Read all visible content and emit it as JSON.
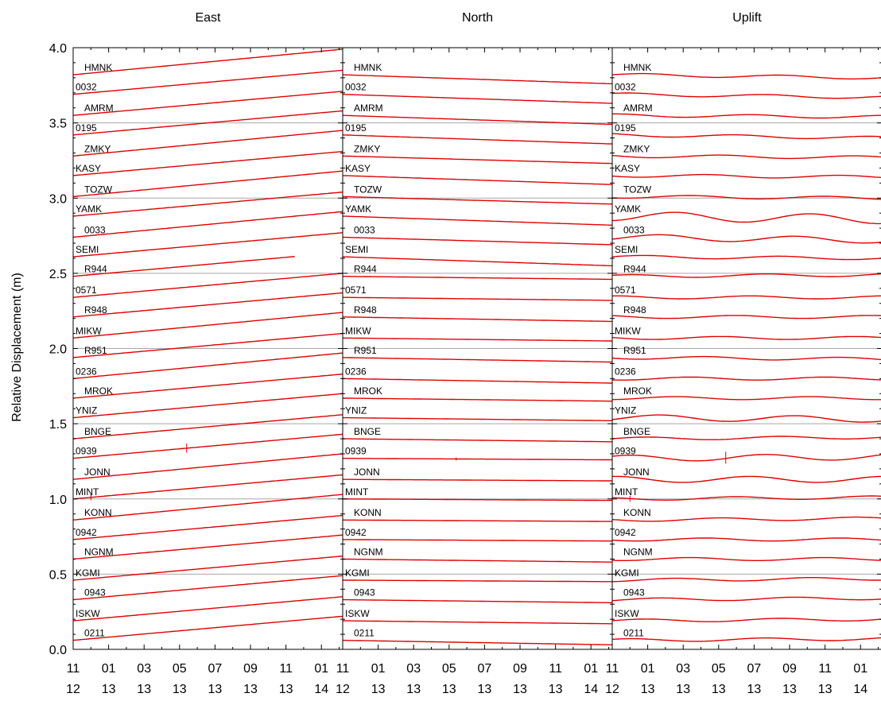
{
  "chart_data": {
    "type": "line",
    "ylabel": "Relative Displacement (m)",
    "ylim": [
      0.0,
      4.0
    ],
    "yticks": [
      "0.0",
      "0.5",
      "1.0",
      "1.5",
      "2.0",
      "2.5",
      "3.0",
      "3.5",
      "4.0"
    ],
    "xlim": [
      "2012-11",
      "2014-02"
    ],
    "xticks": [
      {
        "month": "11",
        "year": "12"
      },
      {
        "month": "01",
        "year": "13"
      },
      {
        "month": "03",
        "year": "13"
      },
      {
        "month": "05",
        "year": "13"
      },
      {
        "month": "07",
        "year": "13"
      },
      {
        "month": "09",
        "year": "13"
      },
      {
        "month": "11",
        "year": "13"
      },
      {
        "month": "01",
        "year": "14"
      }
    ],
    "grid_y": [
      0.5,
      1.0,
      1.5,
      2.0,
      2.5,
      3.0,
      3.5
    ],
    "series_color": "#e00000",
    "panels": [
      {
        "title": "East",
        "stations": [
          {
            "name": "HMNK",
            "start": 3.82,
            "end": 3.99
          },
          {
            "name": "0032",
            "start": 3.69,
            "end": 3.85
          },
          {
            "name": "AMRM",
            "start": 3.55,
            "end": 3.71
          },
          {
            "name": "0195",
            "start": 3.42,
            "end": 3.58
          },
          {
            "name": "ZMKY",
            "start": 3.28,
            "end": 3.45
          },
          {
            "name": "KASY",
            "start": 3.15,
            "end": 3.31
          },
          {
            "name": "TOZW",
            "start": 3.01,
            "end": 3.18
          },
          {
            "name": "YAMK",
            "start": 2.88,
            "end": 3.04
          },
          {
            "name": "0033",
            "start": 2.74,
            "end": 2.91
          },
          {
            "name": "SEMI",
            "start": 2.61,
            "end": 2.77
          },
          {
            "name": "R944",
            "start": 2.48,
            "end": 2.64,
            "end_month": 12.5
          },
          {
            "name": "0571",
            "start": 2.34,
            "end": 2.5
          },
          {
            "name": "R948",
            "start": 2.21,
            "end": 2.37
          },
          {
            "name": "MIKW",
            "start": 2.07,
            "end": 2.24
          },
          {
            "name": "R951",
            "start": 1.94,
            "end": 2.1
          },
          {
            "name": "0236",
            "start": 1.8,
            "end": 1.97
          },
          {
            "name": "MROK",
            "start": 1.67,
            "end": 1.83
          },
          {
            "name": "YNIZ",
            "start": 1.54,
            "end": 1.7
          },
          {
            "name": "BNGE",
            "start": 1.4,
            "end": 1.56
          },
          {
            "name": "0939",
            "start": 1.27,
            "end": 1.43,
            "spike_month": 6.4,
            "spike_height": 0.06
          },
          {
            "name": "JONN",
            "start": 1.13,
            "end": 1.3
          },
          {
            "name": "MINT",
            "start": 1.0,
            "end": 1.16,
            "spike_month": 1.0,
            "spike_height": 0.04
          },
          {
            "name": "KONN",
            "start": 0.86,
            "end": 1.03
          },
          {
            "name": "0942",
            "start": 0.73,
            "end": 0.89
          },
          {
            "name": "NGNM",
            "start": 0.6,
            "end": 0.76
          },
          {
            "name": "KGMI",
            "start": 0.46,
            "end": 0.62
          },
          {
            "name": "0943",
            "start": 0.33,
            "end": 0.49
          },
          {
            "name": "ISKW",
            "start": 0.19,
            "end": 0.35
          },
          {
            "name": "0211",
            "start": 0.06,
            "end": 0.22
          }
        ]
      },
      {
        "title": "North",
        "stations": [
          {
            "name": "HMNK",
            "start": 3.82,
            "end": 3.76
          },
          {
            "name": "0032",
            "start": 3.69,
            "end": 3.63
          },
          {
            "name": "AMRM",
            "start": 3.55,
            "end": 3.49
          },
          {
            "name": "0195",
            "start": 3.42,
            "end": 3.36
          },
          {
            "name": "ZMKY",
            "start": 3.28,
            "end": 3.23
          },
          {
            "name": "KASY",
            "start": 3.15,
            "end": 3.09
          },
          {
            "name": "TOZW",
            "start": 3.01,
            "end": 2.96
          },
          {
            "name": "YAMK",
            "start": 2.88,
            "end": 2.82
          },
          {
            "name": "0033",
            "start": 2.74,
            "end": 2.69
          },
          {
            "name": "SEMI",
            "start": 2.61,
            "end": 2.55
          },
          {
            "name": "R944",
            "start": 2.48,
            "end": 2.46
          },
          {
            "name": "0571",
            "start": 2.34,
            "end": 2.32
          },
          {
            "name": "R948",
            "start": 2.21,
            "end": 2.18
          },
          {
            "name": "MIKW",
            "start": 2.07,
            "end": 2.05
          },
          {
            "name": "R951",
            "start": 1.94,
            "end": 1.91
          },
          {
            "name": "0236",
            "start": 1.8,
            "end": 1.77
          },
          {
            "name": "MROK",
            "start": 1.67,
            "end": 1.65
          },
          {
            "name": "YNIZ",
            "start": 1.54,
            "end": 1.52
          },
          {
            "name": "BNGE",
            "start": 1.4,
            "end": 1.38
          },
          {
            "name": "0939",
            "start": 1.27,
            "end": 1.26,
            "spike_month": 6.4,
            "spike_height": 0.02
          },
          {
            "name": "JONN",
            "start": 1.13,
            "end": 1.12
          },
          {
            "name": "MINT",
            "start": 1.0,
            "end": 0.99
          },
          {
            "name": "KONN",
            "start": 0.86,
            "end": 0.85
          },
          {
            "name": "0942",
            "start": 0.73,
            "end": 0.72
          },
          {
            "name": "NGNM",
            "start": 0.6,
            "end": 0.58
          },
          {
            "name": "KGMI",
            "start": 0.46,
            "end": 0.45
          },
          {
            "name": "0943",
            "start": 0.33,
            "end": 0.31
          },
          {
            "name": "ISKW",
            "start": 0.19,
            "end": 0.17
          },
          {
            "name": "0211",
            "start": 0.06,
            "end": 0.03
          }
        ]
      },
      {
        "title": "Uplift",
        "stations": [
          {
            "name": "HMNK",
            "start": 3.82,
            "end": 3.8,
            "wave": 0.01
          },
          {
            "name": "0032",
            "start": 3.69,
            "end": 3.67,
            "wave": 0.01
          },
          {
            "name": "AMRM",
            "start": 3.55,
            "end": 3.54,
            "wave": 0.01
          },
          {
            "name": "0195",
            "start": 3.42,
            "end": 3.4,
            "wave": 0.01
          },
          {
            "name": "ZMKY",
            "start": 3.28,
            "end": 3.27,
            "wave": 0.01
          },
          {
            "name": "KASY",
            "start": 3.15,
            "end": 3.14,
            "wave": 0.01
          },
          {
            "name": "TOZW",
            "start": 3.01,
            "end": 3.0,
            "wave": 0.01
          },
          {
            "name": "YAMK",
            "start": 2.88,
            "end": 2.86,
            "wave": 0.03
          },
          {
            "name": "0033",
            "start": 2.74,
            "end": 2.72,
            "wave": 0.02
          },
          {
            "name": "SEMI",
            "start": 2.61,
            "end": 2.6,
            "wave": 0.01
          },
          {
            "name": "R944",
            "start": 2.48,
            "end": 2.49,
            "wave": 0.01
          },
          {
            "name": "0571",
            "start": 2.34,
            "end": 2.34,
            "wave": 0.01
          },
          {
            "name": "R948",
            "start": 2.21,
            "end": 2.21,
            "wave": 0.01
          },
          {
            "name": "MIKW",
            "start": 2.07,
            "end": 2.07,
            "wave": 0.01
          },
          {
            "name": "R951",
            "start": 1.94,
            "end": 1.93,
            "wave": 0.01
          },
          {
            "name": "0236",
            "start": 1.8,
            "end": 1.8,
            "wave": 0.01
          },
          {
            "name": "MROK",
            "start": 1.67,
            "end": 1.67,
            "wave": 0.01
          },
          {
            "name": "YNIZ",
            "start": 1.54,
            "end": 1.53,
            "wave": 0.02
          },
          {
            "name": "BNGE",
            "start": 1.4,
            "end": 1.41,
            "wave": 0.01
          },
          {
            "name": "0939",
            "start": 1.27,
            "end": 1.28,
            "wave": 0.02,
            "spike_month": 6.4,
            "spike_height": 0.08
          },
          {
            "name": "JONN",
            "start": 1.13,
            "end": 1.13,
            "wave": 0.02
          },
          {
            "name": "MINT",
            "start": 1.0,
            "end": 1.01,
            "wave": 0.01,
            "spike_month": 1.0,
            "spike_height": 0.04
          },
          {
            "name": "KONN",
            "start": 0.86,
            "end": 0.87,
            "wave": 0.01
          },
          {
            "name": "0942",
            "start": 0.73,
            "end": 0.73,
            "wave": 0.01
          },
          {
            "name": "NGNM",
            "start": 0.6,
            "end": 0.6,
            "wave": 0.01
          },
          {
            "name": "KGMI",
            "start": 0.46,
            "end": 0.47,
            "wave": 0.01
          },
          {
            "name": "0943",
            "start": 0.33,
            "end": 0.34,
            "wave": 0.01
          },
          {
            "name": "ISKW",
            "start": 0.19,
            "end": 0.2,
            "wave": 0.01
          },
          {
            "name": "0211",
            "start": 0.06,
            "end": 0.07,
            "wave": 0.01
          }
        ]
      }
    ]
  }
}
